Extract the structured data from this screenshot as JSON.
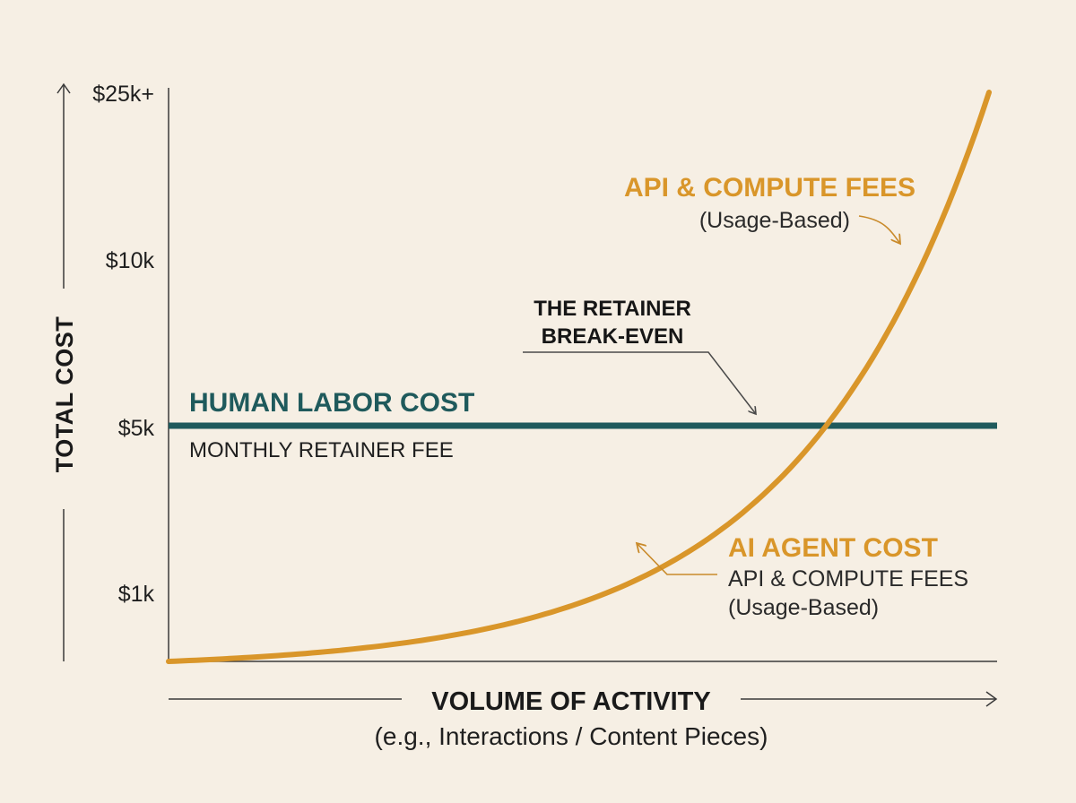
{
  "chart_data": {
    "type": "line",
    "ylabel": "TOTAL COST",
    "xlabel": "VOLUME OF ACTIVITY",
    "xlabel_sub": "(e.g., Interactions / Content Pieces)",
    "y_ticks": [
      "$25k+",
      "$10k",
      "$5k",
      "$1k"
    ],
    "series": [
      {
        "name": "HUMAN LABOR COST",
        "subtitle": "MONTHLY RETAINER FEE",
        "color": "#1f5a5c",
        "shape": "flat",
        "value": "$5k"
      },
      {
        "name": "AI AGENT COST",
        "subtitle_lines": [
          "API & COMPUTE FEES",
          "(Usage-Based)"
        ],
        "color": "#d9962a",
        "shape": "exponential increase, crossing the retainer line"
      }
    ],
    "annotations": [
      {
        "id": "break_even",
        "lines": [
          "THE RETAINER",
          "BREAK-EVEN"
        ]
      },
      {
        "id": "api_fees",
        "title": "API & COMPUTE FEES",
        "subtitle": "(Usage-Based)"
      }
    ],
    "grid": false
  }
}
